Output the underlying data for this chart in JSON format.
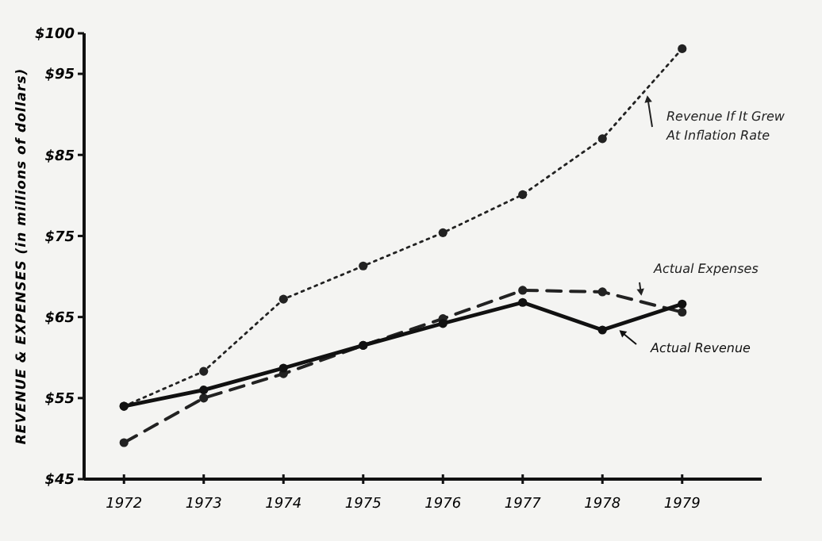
{
  "chart_data": {
    "type": "line",
    "ylabel": "REVENUE & EXPENSES  (in millions of dollars)",
    "categories": [
      "1972",
      "1973",
      "1974",
      "1975",
      "1976",
      "1977",
      "1978",
      "1979"
    ],
    "ylim": [
      45,
      100
    ],
    "yticks": [
      {
        "value": 45,
        "label": "$45"
      },
      {
        "value": 55,
        "label": "$55"
      },
      {
        "value": 65,
        "label": "$65"
      },
      {
        "value": 75,
        "label": "$75"
      },
      {
        "value": 85,
        "label": "$85"
      },
      {
        "value": 95,
        "label": "$95"
      },
      {
        "value": 100,
        "label": "$100"
      }
    ],
    "grid": false,
    "marker": "circle",
    "legend": false,
    "series": [
      {
        "name": "Revenue If It Grew At Inflation Rate",
        "color": "#222222",
        "line_style": "dotted",
        "values": [
          54,
          58.3,
          67.2,
          71.3,
          75.4,
          80.1,
          87,
          98.1
        ]
      },
      {
        "name": "Actual Expenses",
        "color": "#222222",
        "line_style": "dashed",
        "values": [
          49.5,
          55,
          58,
          61.5,
          64.8,
          68.3,
          68.1,
          65.6
        ]
      },
      {
        "name": "Actual Revenue",
        "color": "#111111",
        "line_style": "solid",
        "values": [
          54,
          56,
          58.7,
          61.5,
          64.2,
          66.8,
          63.4,
          66.6
        ]
      }
    ]
  }
}
